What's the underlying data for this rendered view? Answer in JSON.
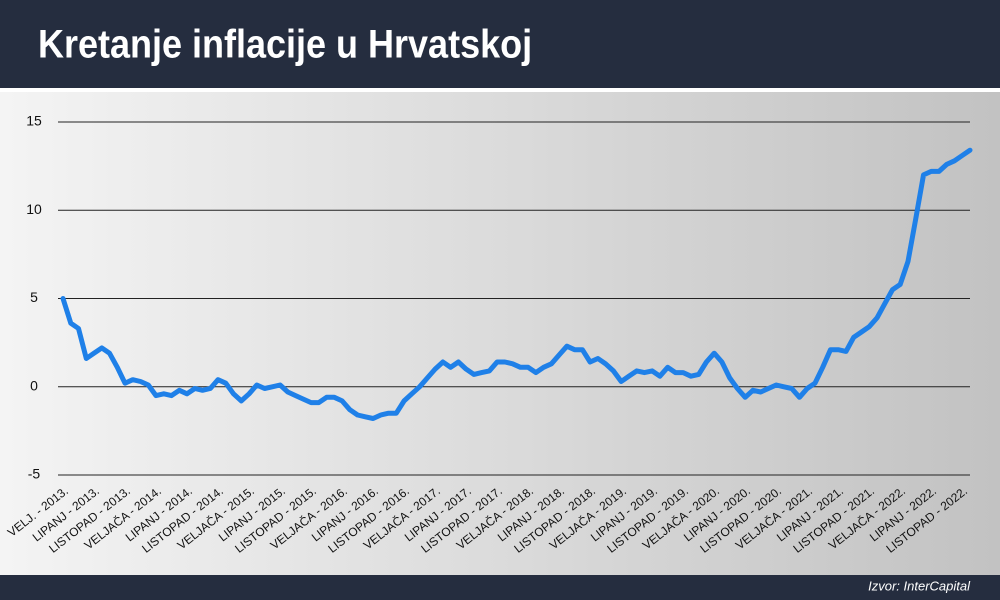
{
  "chart_data": {
    "type": "line",
    "title": "Kretanje inflacije u Hrvatskoj",
    "source": "Izvor: InterCapital",
    "color": "#1f80e8",
    "grid": true,
    "ylim": [
      -5,
      15
    ],
    "yticks": [
      -5,
      0,
      5,
      10,
      15
    ],
    "categories": [
      "VELJ. - 2013.",
      null,
      null,
      null,
      "LIPANJ - 2013.",
      null,
      null,
      null,
      "LISTOPAD - 2013.",
      null,
      null,
      null,
      "VELJAČA - 2014.",
      null,
      null,
      null,
      "LIPANJ - 2014.",
      null,
      null,
      null,
      "LISTOPAD - 2014.",
      null,
      null,
      null,
      "VELJAČA - 2015.",
      null,
      null,
      null,
      "LIPANJ - 2015.",
      null,
      null,
      null,
      "LISTOPAD - 2015.",
      null,
      null,
      null,
      "VELJAČA - 2016.",
      null,
      null,
      null,
      "LIPANJ - 2016.",
      null,
      null,
      null,
      "LISTOPAD - 2016.",
      null,
      null,
      null,
      "VELJAČA - 2017.",
      null,
      null,
      null,
      "LIPANJ - 2017.",
      null,
      null,
      null,
      "LISTOPAD - 2017.",
      null,
      null,
      null,
      "VELJAČA - 2018.",
      null,
      null,
      null,
      "LIPANJ - 2018.",
      null,
      null,
      null,
      "LISTOPAD - 2018.",
      null,
      null,
      null,
      "VELJAČA - 2019.",
      null,
      null,
      null,
      "LIPANJ - 2019.",
      null,
      null,
      null,
      "LISTOPAD - 2019.",
      null,
      null,
      null,
      "VELJAČA - 2020.",
      null,
      null,
      null,
      "LIPANJ - 2020.",
      null,
      null,
      null,
      "LISTOPAD - 2020.",
      null,
      null,
      null,
      "VELJAČA - 2021.",
      null,
      null,
      null,
      "LIPANJ - 2021.",
      null,
      null,
      null,
      "LISTOPAD - 2021.",
      null,
      null,
      null,
      "VELJAČA - 2022.",
      null,
      null,
      null,
      "LIPANJ - 2022.",
      null,
      null,
      null,
      "LISTOPAD - 2022.",
      null
    ],
    "values": [
      5.0,
      3.6,
      3.3,
      1.6,
      1.9,
      2.2,
      1.9,
      1.1,
      0.2,
      0.4,
      0.3,
      0.1,
      -0.5,
      -0.4,
      -0.5,
      -0.2,
      -0.4,
      -0.1,
      -0.2,
      -0.1,
      0.4,
      0.2,
      -0.4,
      -0.8,
      -0.4,
      0.1,
      -0.1,
      0.0,
      0.1,
      -0.3,
      -0.5,
      -0.7,
      -0.9,
      -0.9,
      -0.6,
      -0.6,
      -0.8,
      -1.3,
      -1.6,
      -1.7,
      -1.8,
      -1.6,
      -1.5,
      -1.5,
      -0.8,
      -0.4,
      0.0,
      0.5,
      1.0,
      1.4,
      1.1,
      1.4,
      1.0,
      0.7,
      0.8,
      0.9,
      1.4,
      1.4,
      1.3,
      1.1,
      1.1,
      0.8,
      1.1,
      1.3,
      1.8,
      2.3,
      2.1,
      2.1,
      1.4,
      1.6,
      1.3,
      0.9,
      0.3,
      0.6,
      0.9,
      0.8,
      0.9,
      0.6,
      1.1,
      0.8,
      0.8,
      0.6,
      0.7,
      1.4,
      1.9,
      1.4,
      0.5,
      -0.1,
      -0.6,
      -0.2,
      -0.3,
      -0.1,
      0.1,
      0.0,
      -0.1,
      -0.6,
      -0.1,
      0.2,
      1.1,
      2.1,
      2.1,
      2.0,
      2.8,
      3.1,
      3.4,
      3.9,
      4.7,
      5.5,
      5.8,
      7.1,
      9.5,
      12.0,
      12.2,
      12.2,
      12.6,
      12.8,
      13.1,
      13.4
    ]
  }
}
